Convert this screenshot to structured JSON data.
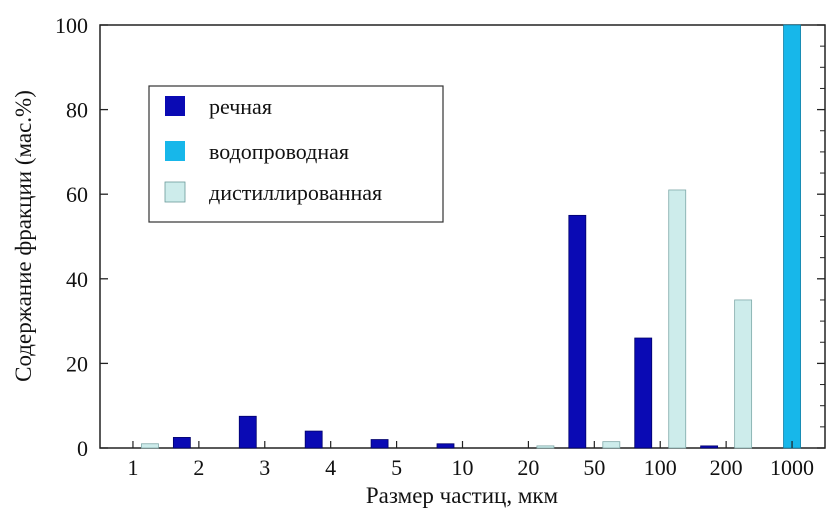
{
  "chart_data": {
    "type": "bar",
    "title": "",
    "xlabel": "Размер частиц, мкм",
    "ylabel": "Содержание фракции (мас.%)",
    "ylim": [
      0,
      100
    ],
    "yticks": [
      0,
      20,
      40,
      60,
      80,
      100
    ],
    "grid": false,
    "legend_position": "top-left",
    "categories": [
      "1",
      "2",
      "3",
      "4",
      "5",
      "10",
      "20",
      "50",
      "100",
      "200",
      "1000"
    ],
    "series": [
      {
        "name": "речная",
        "color": "#0a0ab4",
        "values": [
          0,
          2.5,
          7.5,
          4,
          2,
          1,
          0,
          55,
          26,
          0.5,
          0
        ]
      },
      {
        "name": "водопроводная",
        "color": "#17b7ea",
        "values": [
          0,
          0,
          0,
          0,
          0,
          0,
          0,
          0,
          0,
          0,
          100
        ]
      },
      {
        "name": "дистиллированная",
        "color": "#cdeceb",
        "values": [
          1,
          0,
          0,
          0,
          0,
          0,
          0.5,
          1.5,
          61,
          35,
          0
        ]
      }
    ]
  }
}
